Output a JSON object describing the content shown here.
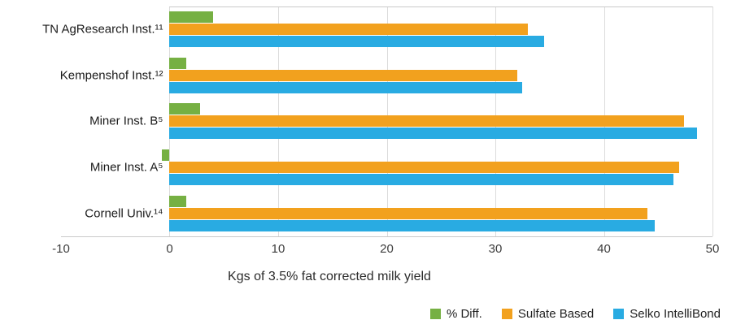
{
  "chart_data": {
    "type": "bar",
    "orientation": "horizontal",
    "categories": [
      "TN AgResearch Inst.¹¹",
      "Kempenshof Inst.¹²",
      "Miner Inst. B⁵",
      "Miner Inst. A⁵",
      "Cornell Univ.¹⁴"
    ],
    "series": [
      {
        "name": "% Diff.",
        "color": "#76b043",
        "values": [
          4.0,
          1.5,
          2.8,
          -0.7,
          1.5
        ]
      },
      {
        "name": "Sulfate Based",
        "color": "#f2a11e",
        "values": [
          33.0,
          32.0,
          47.4,
          46.9,
          44.0
        ]
      },
      {
        "name": "Selko IntelliBond",
        "color": "#29abe2",
        "values": [
          34.5,
          32.5,
          48.6,
          46.4,
          44.7
        ]
      }
    ],
    "title": "",
    "xlabel": "Kgs of 3.5% fat corrected milk yield",
    "ylabel": "",
    "xlim": [
      -10,
      50
    ],
    "xticks": [
      -10,
      0,
      10,
      20,
      30,
      40,
      50
    ],
    "grid": true,
    "legend_position": "bottom-right",
    "gridline_color": "#dcdcdc",
    "axis_line_color": "#c9c9c9"
  }
}
